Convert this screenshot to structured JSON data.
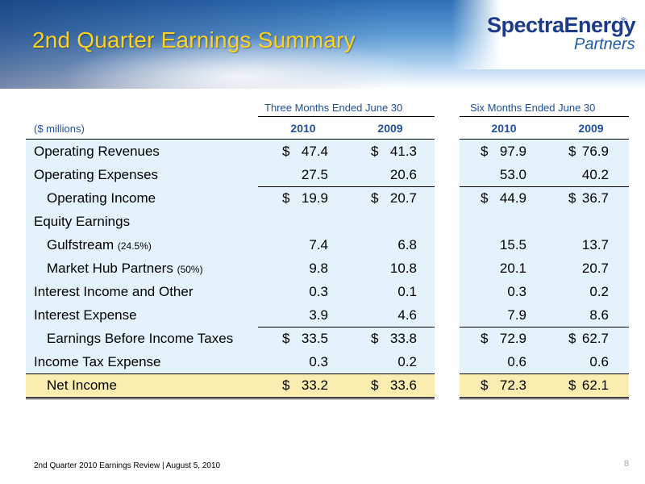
{
  "title": "2nd Quarter Earnings Summary",
  "logo": {
    "main": "SpectraEnergy",
    "tm": "®",
    "sub": "Partners"
  },
  "units": "($ millions)",
  "groups": [
    {
      "label": "Three Months Ended June 30",
      "years": [
        "2010",
        "2009"
      ]
    },
    {
      "label": "Six Months Ended June 30",
      "years": [
        "2010",
        "2009"
      ]
    }
  ],
  "rows": [
    {
      "label": "Operating Revenues",
      "indent": false,
      "values": [
        "47.4",
        "41.3",
        "97.9",
        "76.9"
      ],
      "dollar": true
    },
    {
      "label": "Operating Expenses",
      "indent": false,
      "values": [
        "27.5",
        "20.6",
        "53.0",
        "40.2"
      ],
      "dollar": false
    },
    {
      "label": "Operating Income",
      "indent": true,
      "values": [
        "19.9",
        "20.7",
        "44.9",
        "36.7"
      ],
      "dollar": true
    },
    {
      "label": "Equity Earnings",
      "indent": false,
      "values": [
        "",
        "",
        "",
        ""
      ],
      "dollar": false
    },
    {
      "label": "Gulfstream",
      "note": "(24.5%)",
      "indent": true,
      "values": [
        "7.4",
        "6.8",
        "15.5",
        "13.7"
      ],
      "dollar": false
    },
    {
      "label": "Market Hub Partners",
      "note": "(50%)",
      "indent": true,
      "values": [
        "9.8",
        "10.8",
        "20.1",
        "20.7"
      ],
      "dollar": false
    },
    {
      "label": "Interest Income and Other",
      "indent": false,
      "values": [
        "0.3",
        "0.1",
        "0.3",
        "0.2"
      ],
      "dollar": false
    },
    {
      "label": "Interest Expense",
      "indent": false,
      "values": [
        "3.9",
        "4.6",
        "7.9",
        "8.6"
      ],
      "dollar": false
    },
    {
      "label": "Earnings Before Income Taxes",
      "indent": true,
      "values": [
        "33.5",
        "33.8",
        "72.9",
        "62.7"
      ],
      "dollar": true
    },
    {
      "label": "Income Tax Expense",
      "indent": false,
      "values": [
        "0.3",
        "0.2",
        "0.6",
        "0.6"
      ],
      "dollar": false
    },
    {
      "label": "Net Income",
      "indent": true,
      "values": [
        "33.2",
        "33.6",
        "72.3",
        "62.1"
      ],
      "dollar": true,
      "highlight": true
    }
  ],
  "dollar_sign": "$",
  "footer": "2nd Quarter 2010 Earnings Review | August 5, 2010",
  "page_number": "8",
  "colors": {
    "title": "#ffd21f",
    "header_text": "#1f4f9c",
    "row_bg": "#e4f2fb",
    "net_income_bg": "#fbedb0"
  }
}
